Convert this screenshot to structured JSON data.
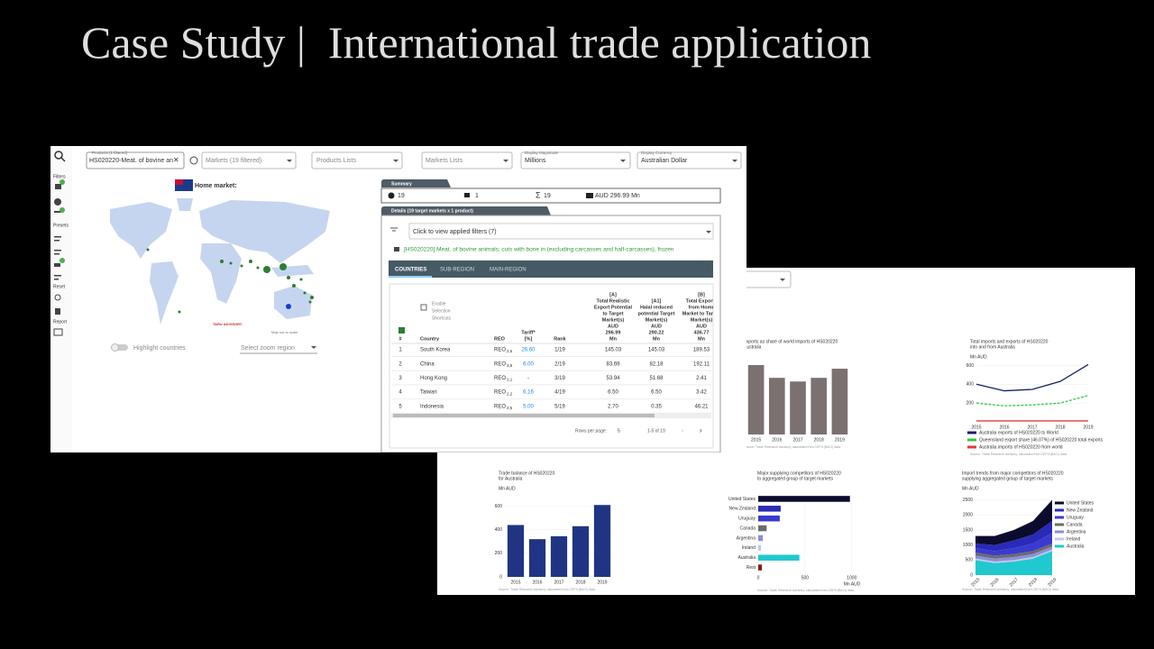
{
  "header": {
    "title": "Case Study |  International trade application"
  },
  "toolbar": {
    "products_label": "Products (1 filtered)",
    "products_value": "HS020220-Meat. of bovine an",
    "markets": "Markets (19 filtered)",
    "products_lists": "Products Lists",
    "markets_lists": "Markets Lists",
    "magnitude_label": "Display Magnitude",
    "magnitude_value": "Millions",
    "currency_label": "Display Currency",
    "currency_value": "Australian Dollar"
  },
  "sidebar": {
    "filters": "Filters",
    "presets": "Presets",
    "reset": "Reset",
    "report": "Report"
  },
  "map": {
    "home_market": "Home market:",
    "logo": "TARU ADVISORY",
    "note": "Map not to scale",
    "highlight": "Highlight countries",
    "zoom": "Select zoom region"
  },
  "summary": {
    "title": "Summary",
    "markets": "19",
    "products": "1",
    "total": "19",
    "value": "AUD 296.99 Mn"
  },
  "details": {
    "title": "Details (19 target markets x 1 product)",
    "filters": "Click to view applied filters (7)",
    "product": "[HS020220] Meat. of bovine animals; cuts with bone in (excluding carcasses and half-carcasses), frozen",
    "tabs": [
      "COUNTRIES",
      "SUB-REGION",
      "MAIN-REGION"
    ],
    "table": {
      "shortcuts": [
        "Enable",
        "Selection",
        "Shortcuts"
      ],
      "columns": [
        {
          "lines": [
            "#"
          ]
        },
        {
          "lines": [
            "Country"
          ]
        },
        {
          "lines": [
            "REO"
          ]
        },
        {
          "lines": [
            "Tariff*",
            "[%]"
          ]
        },
        {
          "lines": [
            "Rank"
          ]
        },
        {
          "lines": [
            "[A]",
            "Total Realistic",
            "Export Potential",
            "to Target",
            "Market(s)",
            "AUD",
            "296.99",
            "Mn"
          ]
        },
        {
          "lines": [
            "[A1]",
            "Halal reduced",
            "potential Target",
            "Market(s)",
            "AUD",
            "290.22",
            "Mn"
          ]
        },
        {
          "lines": [
            "[B]",
            "Total Exports",
            "from Home",
            "Market to Target",
            "Market(s)",
            "AUD",
            "436.77",
            "Mn"
          ]
        }
      ],
      "rows": [
        [
          "1",
          "South Korea",
          {
            "text": "REO",
            "sub": "2,5"
          },
          "26.60",
          "1/19",
          "145.03",
          "145.03",
          "189.53"
        ],
        [
          "2",
          "China",
          {
            "text": "REO",
            "sub": "3,5"
          },
          "6.00",
          "2/19",
          "83.69",
          "82.18",
          "192.11"
        ],
        [
          "3",
          "Hong Kong",
          {
            "text": "REO",
            "sub": "1,1"
          },
          "-",
          "3/19",
          "53.94",
          "51.68",
          "2.41"
        ],
        [
          "4",
          "Taiwan",
          {
            "text": "REO",
            "sub": "2,2"
          },
          "6.16",
          "4/19",
          "6.50",
          "6.50",
          "3.42"
        ],
        [
          "5",
          "Indonesia",
          {
            "text": "REO",
            "sub": "4,5"
          },
          "5.00",
          "5/19",
          "2.70",
          "0.35",
          "46.21"
        ]
      ],
      "rows_per_page_label": "Rows per page:",
      "rows_per_page": "5",
      "range": "1-5 of 19"
    }
  },
  "charts": [
    {
      "type": "bar",
      "title_lines": [
        "exports as share of world imports of HS020220",
        "Australia"
      ],
      "categories": [
        "2015",
        "2016",
        "2017",
        "2018",
        "2019"
      ],
      "values": [
        76,
        62,
        58,
        62,
        72
      ],
      "color": "#7a7170",
      "source": "Source: Trade Research Advisory, calculated from CEPII (BACI) data"
    },
    {
      "type": "line",
      "title_lines": [
        "Total imports and exports of HS020220",
        "into and from Australia"
      ],
      "ylabel": "Mn AUD",
      "categories": [
        "2015",
        "2016",
        "2017",
        "2018",
        "2019"
      ],
      "ylim": [
        0,
        700
      ],
      "yticks": [
        200,
        400,
        600
      ],
      "series": [
        {
          "name": "Australia exports of HS020220 to World",
          "color": "#14206b",
          "values": [
            400,
            330,
            345,
            430,
            610
          ]
        },
        {
          "name": "Queensland export share (46.07%) of HS020220 total exports",
          "color": "#2ecc40",
          "dashed": true,
          "values": [
            200,
            170,
            180,
            200,
            280
          ]
        },
        {
          "name": "Australia imports of HS020220 from world",
          "color": "#e53935",
          "values": [
            10,
            10,
            10,
            10,
            10
          ]
        }
      ],
      "source": "Source: Trade Research Advisory, calculated from CEPII (BACI) data"
    },
    {
      "type": "bar",
      "title_lines": [
        "Trade balance of HS020220",
        "for Australia"
      ],
      "ylabel": "Mn AUD",
      "categories": [
        "2015",
        "2016",
        "2017",
        "2018",
        "2019"
      ],
      "ylim": [
        0,
        650
      ],
      "yticks": [
        0,
        200,
        400,
        600
      ],
      "values": [
        440,
        320,
        345,
        430,
        610
      ],
      "color": "#1f3584",
      "source": "Source: Trade Research Advisory, calculated from CEPII (BACI) data"
    },
    {
      "type": "hbar",
      "title_lines": [
        "Major supplying competitors of HS020220",
        "to aggregated group of target markets"
      ],
      "categories": [
        "United States",
        "New Zealand",
        "Uruguay",
        "Canada",
        "Argentina",
        "Ireland",
        "Australia",
        "Rest"
      ],
      "values": [
        980,
        240,
        230,
        90,
        50,
        30,
        440,
        40
      ],
      "colors": [
        "#0b0b2e",
        "#2a2ab8",
        "#3a3ad0",
        "#6b6b6b",
        "#8a8fd8",
        "#c8c8e8",
        "#20c8d0",
        "#8b1a1a"
      ],
      "xlim": [
        0,
        1050
      ],
      "xticks": [
        0,
        500,
        1000
      ],
      "xlabel": "Mn AUD",
      "source": "Source: Trade Research Advisory, calculated from CEPII (BACI) data"
    },
    {
      "type": "area",
      "title_lines": [
        "Import trends from major competitors of HS020220",
        "supplying aggregated group of target markets"
      ],
      "ylabel": "Mn AUD",
      "categories": [
        "2015",
        "2016",
        "2017",
        "2018",
        "2019"
      ],
      "ylim": [
        0,
        2550
      ],
      "yticks": [
        0,
        500,
        1000,
        1500,
        2000,
        2500
      ],
      "series": [
        {
          "name": "Australia",
          "color": "#20c8d0",
          "values": [
            500,
            400,
            450,
            550,
            800
          ]
        },
        {
          "name": "Ireland",
          "color": "#c8c8e8",
          "values": [
            50,
            50,
            50,
            50,
            50
          ]
        },
        {
          "name": "Argentina",
          "color": "#8a8fd8",
          "values": [
            100,
            100,
            100,
            100,
            100
          ]
        },
        {
          "name": "Canada",
          "color": "#6b6b6b",
          "values": [
            100,
            100,
            100,
            100,
            100
          ]
        },
        {
          "name": "Uruguay",
          "color": "#3a3ad0",
          "values": [
            150,
            150,
            200,
            250,
            350
          ]
        },
        {
          "name": "New Zealand",
          "color": "#2a2ab8",
          "values": [
            150,
            200,
            250,
            300,
            400
          ]
        },
        {
          "name": "United States",
          "color": "#0b0b2e",
          "values": [
            250,
            300,
            350,
            450,
            700
          ]
        }
      ],
      "source": "Source: Trade Research Advisory, calculated from CEPII (BACI) data"
    }
  ]
}
